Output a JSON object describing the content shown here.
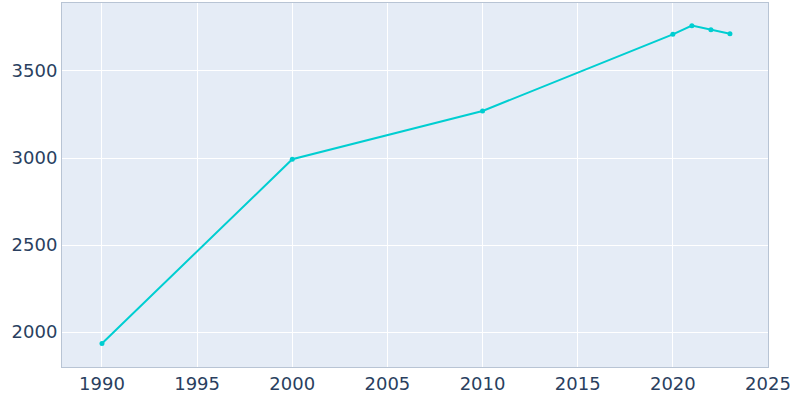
{
  "chart_data": {
    "type": "line",
    "x": [
      1990,
      2000,
      2010,
      2020,
      2021,
      2022,
      2023
    ],
    "values": [
      1935,
      2993,
      3270,
      3710,
      3760,
      3737,
      3713
    ],
    "color": "#00ced1",
    "marker": "circle",
    "xlim": [
      1987.9,
      2025
    ],
    "xticks": [
      1990,
      1995,
      2000,
      2005,
      2010,
      2015,
      2020,
      2025
    ],
    "ylim": [
      1800,
      3890
    ],
    "yticks": [
      2000,
      2500,
      3000,
      3500
    ],
    "grid": true
  }
}
